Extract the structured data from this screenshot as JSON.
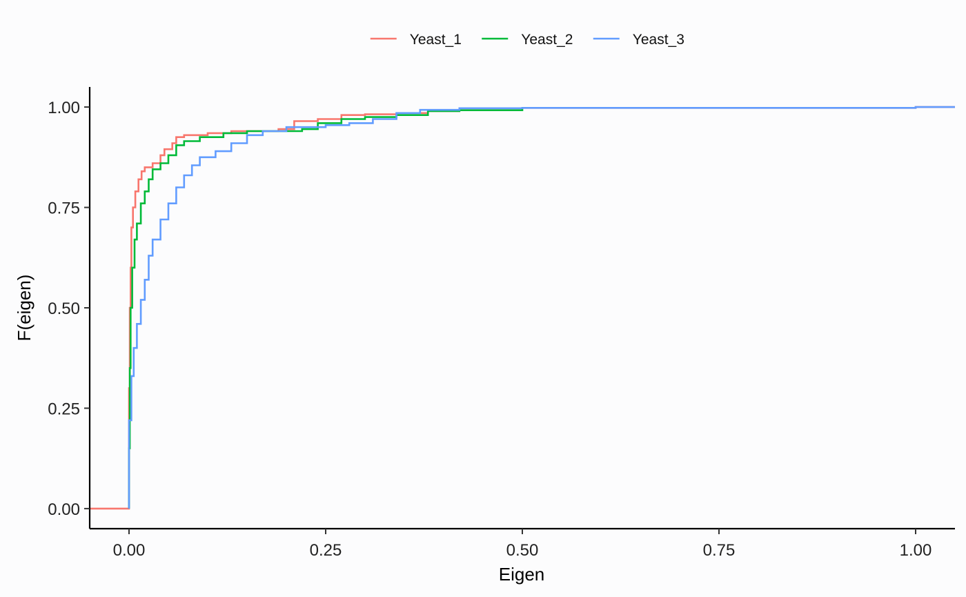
{
  "chart_data": {
    "type": "line",
    "title": "",
    "xlabel": "Eigen",
    "ylabel": "F(eigen)",
    "xlim": [
      -0.05,
      1.05
    ],
    "ylim": [
      -0.05,
      1.05
    ],
    "x_ticks": [
      0.0,
      0.25,
      0.5,
      0.75,
      1.0
    ],
    "x_tick_labels": [
      "0.00",
      "0.25",
      "0.50",
      "0.75",
      "1.00"
    ],
    "y_ticks": [
      0.0,
      0.25,
      0.5,
      0.75,
      1.0
    ],
    "y_tick_labels": [
      "0.00",
      "0.25",
      "0.50",
      "0.75",
      "1.00"
    ],
    "grid": false,
    "legend_position": "top",
    "series": [
      {
        "name": "Yeast_1",
        "color": "#F8766D",
        "step": true,
        "points": [
          [
            -0.05,
            0.0
          ],
          [
            0.0,
            0.0
          ],
          [
            0.0,
            0.3
          ],
          [
            0.001,
            0.5
          ],
          [
            0.002,
            0.6
          ],
          [
            0.003,
            0.7
          ],
          [
            0.005,
            0.75
          ],
          [
            0.008,
            0.79
          ],
          [
            0.012,
            0.82
          ],
          [
            0.016,
            0.84
          ],
          [
            0.02,
            0.85
          ],
          [
            0.03,
            0.86
          ],
          [
            0.04,
            0.88
          ],
          [
            0.045,
            0.895
          ],
          [
            0.055,
            0.91
          ],
          [
            0.06,
            0.925
          ],
          [
            0.07,
            0.93
          ],
          [
            0.1,
            0.935
          ],
          [
            0.13,
            0.94
          ],
          [
            0.19,
            0.945
          ],
          [
            0.21,
            0.965
          ],
          [
            0.24,
            0.97
          ],
          [
            0.27,
            0.98
          ],
          [
            0.3,
            0.982
          ],
          [
            0.34,
            0.985
          ],
          [
            0.38,
            0.99
          ],
          [
            0.42,
            0.997
          ],
          [
            0.5,
            0.998
          ],
          [
            1.0,
            1.0
          ],
          [
            1.05,
            1.0
          ]
        ]
      },
      {
        "name": "Yeast_2",
        "color": "#00BA38",
        "step": true,
        "points": [
          [
            0.0,
            0.0
          ],
          [
            0.0,
            0.15
          ],
          [
            0.001,
            0.35
          ],
          [
            0.002,
            0.5
          ],
          [
            0.004,
            0.6
          ],
          [
            0.007,
            0.67
          ],
          [
            0.01,
            0.71
          ],
          [
            0.015,
            0.76
          ],
          [
            0.02,
            0.79
          ],
          [
            0.025,
            0.82
          ],
          [
            0.03,
            0.845
          ],
          [
            0.04,
            0.86
          ],
          [
            0.05,
            0.88
          ],
          [
            0.06,
            0.905
          ],
          [
            0.07,
            0.915
          ],
          [
            0.09,
            0.925
          ],
          [
            0.12,
            0.935
          ],
          [
            0.15,
            0.94
          ],
          [
            0.22,
            0.945
          ],
          [
            0.24,
            0.96
          ],
          [
            0.27,
            0.97
          ],
          [
            0.3,
            0.975
          ],
          [
            0.34,
            0.98
          ],
          [
            0.38,
            0.99
          ],
          [
            0.42,
            0.992
          ],
          [
            0.5,
            0.997
          ]
        ]
      },
      {
        "name": "Yeast_3",
        "color": "#619CFF",
        "step": true,
        "points": [
          [
            0.0,
            0.0
          ],
          [
            0.0,
            0.22
          ],
          [
            0.003,
            0.33
          ],
          [
            0.006,
            0.4
          ],
          [
            0.01,
            0.46
          ],
          [
            0.015,
            0.52
          ],
          [
            0.02,
            0.57
          ],
          [
            0.025,
            0.63
          ],
          [
            0.03,
            0.67
          ],
          [
            0.04,
            0.72
          ],
          [
            0.05,
            0.76
          ],
          [
            0.06,
            0.8
          ],
          [
            0.07,
            0.83
          ],
          [
            0.08,
            0.855
          ],
          [
            0.09,
            0.875
          ],
          [
            0.11,
            0.89
          ],
          [
            0.13,
            0.91
          ],
          [
            0.15,
            0.93
          ],
          [
            0.17,
            0.94
          ],
          [
            0.2,
            0.95
          ],
          [
            0.25,
            0.955
          ],
          [
            0.28,
            0.96
          ],
          [
            0.31,
            0.97
          ],
          [
            0.34,
            0.985
          ],
          [
            0.37,
            0.993
          ],
          [
            0.42,
            0.997
          ],
          [
            0.5,
            0.998
          ],
          [
            1.0,
            1.0
          ],
          [
            1.05,
            1.0
          ]
        ]
      }
    ]
  }
}
